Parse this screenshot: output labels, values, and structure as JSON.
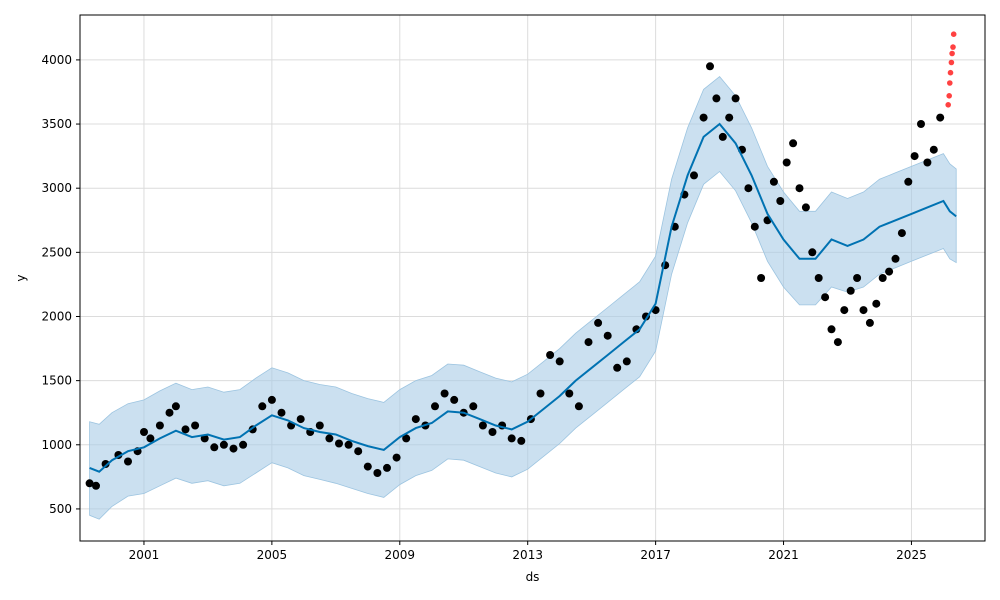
{
  "chart_data": {
    "type": "scatter",
    "xlabel": "ds",
    "ylabel": "y",
    "xlim": [
      1999.0,
      2027.3
    ],
    "ylim": [
      250,
      4350
    ],
    "x_ticks": [
      2001,
      2005,
      2009,
      2013,
      2017,
      2021,
      2025
    ],
    "x_tick_labels": [
      "2001",
      "2005",
      "2009",
      "2013",
      "2017",
      "2021",
      "2025"
    ],
    "y_ticks": [
      500,
      1000,
      1500,
      2000,
      2500,
      3000,
      3500,
      4000
    ],
    "y_tick_labels": [
      "500",
      "1000",
      "1500",
      "2000",
      "2500",
      "3000",
      "3500",
      "4000"
    ],
    "grid": true,
    "legend": "none",
    "colors": {
      "observed": "#000000",
      "forecast": "#0072B2",
      "interval": "#a8cce6",
      "anomaly": "#ff2020"
    },
    "series": [
      {
        "kind": "forecast",
        "x": [
          1999.3,
          1999.6,
          2000.0,
          2000.5,
          2001.0,
          2001.5,
          2002.0,
          2002.5,
          2003.0,
          2003.5,
          2004.0,
          2004.5,
          2005.0,
          2005.5,
          2006.0,
          2006.5,
          2007.0,
          2007.5,
          2008.0,
          2008.5,
          2009.0,
          2009.5,
          2010.0,
          2010.5,
          2011.0,
          2011.5,
          2012.0,
          2012.5,
          2013.0,
          2013.5,
          2014.0,
          2014.5,
          2015.0,
          2015.5,
          2016.0,
          2016.5,
          2017.0,
          2017.5,
          2018.0,
          2018.5,
          2019.0,
          2019.5,
          2020.0,
          2020.5,
          2021.0,
          2021.5,
          2022.0,
          2022.5,
          2023.0,
          2023.5,
          2024.0,
          2024.5,
          2025.0,
          2025.5,
          2026.0,
          2026.2,
          2026.4
        ],
        "y": [
          820,
          790,
          880,
          950,
          980,
          1050,
          1110,
          1060,
          1080,
          1040,
          1060,
          1150,
          1230,
          1190,
          1130,
          1100,
          1080,
          1030,
          990,
          960,
          1060,
          1130,
          1170,
          1260,
          1250,
          1200,
          1150,
          1120,
          1180,
          1280,
          1380,
          1500,
          1600,
          1700,
          1800,
          1900,
          2100,
          2700,
          3100,
          3400,
          3500,
          3350,
          3100,
          2800,
          2600,
          2450,
          2450,
          2600,
          2550,
          2600,
          2700,
          2750,
          2800,
          2850,
          2900,
          2820,
          2780
        ],
        "lower": [
          450,
          420,
          520,
          600,
          620,
          680,
          740,
          700,
          720,
          680,
          700,
          780,
          860,
          820,
          760,
          730,
          700,
          660,
          620,
          590,
          690,
          760,
          800,
          890,
          880,
          830,
          780,
          750,
          810,
          910,
          1010,
          1130,
          1230,
          1330,
          1430,
          1530,
          1730,
          2330,
          2730,
          3030,
          3130,
          2980,
          2730,
          2430,
          2230,
          2090,
          2090,
          2230,
          2190,
          2230,
          2330,
          2380,
          2430,
          2480,
          2530,
          2450,
          2420
        ],
        "upper": [
          1180,
          1160,
          1250,
          1320,
          1350,
          1420,
          1480,
          1430,
          1450,
          1410,
          1430,
          1520,
          1600,
          1560,
          1500,
          1470,
          1450,
          1400,
          1360,
          1330,
          1430,
          1500,
          1540,
          1630,
          1620,
          1570,
          1520,
          1490,
          1550,
          1650,
          1750,
          1870,
          1970,
          2070,
          2170,
          2270,
          2470,
          3070,
          3470,
          3770,
          3870,
          3720,
          3470,
          3170,
          2970,
          2820,
          2820,
          2970,
          2920,
          2970,
          3070,
          3120,
          3170,
          3220,
          3270,
          3190,
          3150
        ]
      },
      {
        "kind": "observed",
        "x": [
          1999.3,
          1999.5,
          1999.8,
          2000.2,
          2000.5,
          2000.8,
          2001.0,
          2001.2,
          2001.5,
          2001.8,
          2002.0,
          2002.3,
          2002.6,
          2002.9,
          2003.2,
          2003.5,
          2003.8,
          2004.1,
          2004.4,
          2004.7,
          2005.0,
          2005.3,
          2005.6,
          2005.9,
          2006.2,
          2006.5,
          2006.8,
          2007.1,
          2007.4,
          2007.7,
          2008.0,
          2008.3,
          2008.6,
          2008.9,
          2009.2,
          2009.5,
          2009.8,
          2010.1,
          2010.4,
          2010.7,
          2011.0,
          2011.3,
          2011.6,
          2011.9,
          2012.2,
          2012.5,
          2012.8,
          2013.1,
          2013.4,
          2013.7,
          2014.0,
          2014.3,
          2014.6,
          2014.9,
          2015.2,
          2015.5,
          2015.8,
          2016.1,
          2016.4,
          2016.7,
          2017.0,
          2017.3,
          2017.6,
          2017.9,
          2018.2,
          2018.5,
          2018.7,
          2018.9,
          2019.1,
          2019.3,
          2019.5,
          2019.7,
          2019.9,
          2020.1,
          2020.3,
          2020.5,
          2020.7,
          2020.9,
          2021.1,
          2021.3,
          2021.5,
          2021.7,
          2021.9,
          2022.1,
          2022.3,
          2022.5,
          2022.7,
          2022.9,
          2023.1,
          2023.3,
          2023.5,
          2023.7,
          2023.9,
          2024.1,
          2024.3,
          2024.5,
          2024.7,
          2024.9,
          2025.1,
          2025.3,
          2025.5,
          2025.7,
          2025.9
        ],
        "y": [
          700,
          680,
          850,
          920,
          870,
          950,
          1100,
          1050,
          1150,
          1250,
          1300,
          1120,
          1150,
          1050,
          980,
          1000,
          970,
          1000,
          1120,
          1300,
          1350,
          1250,
          1150,
          1200,
          1100,
          1150,
          1050,
          1010,
          1000,
          950,
          830,
          780,
          820,
          900,
          1050,
          1200,
          1150,
          1300,
          1400,
          1350,
          1250,
          1300,
          1150,
          1100,
          1150,
          1050,
          1030,
          1200,
          1400,
          1700,
          1650,
          1400,
          1300,
          1800,
          1950,
          1850,
          1600,
          1650,
          1900,
          2000,
          2050,
          2400,
          2700,
          2950,
          3100,
          3550,
          3950,
          3700,
          3400,
          3550,
          3700,
          3300,
          3000,
          2700,
          2300,
          2750,
          3050,
          2900,
          3200,
          3350,
          3000,
          2850,
          2500,
          2300,
          2150,
          1900,
          1800,
          2050,
          2200,
          2300,
          2050,
          1950,
          2100,
          2300,
          2350,
          2450,
          2650,
          3050,
          3250,
          3500,
          3200,
          3300,
          3550
        ]
      },
      {
        "kind": "anomaly",
        "x": [
          2026.15,
          2026.18,
          2026.2,
          2026.22,
          2026.25,
          2026.27,
          2026.3,
          2026.32
        ],
        "y": [
          3650,
          3720,
          3820,
          3900,
          3980,
          4050,
          4100,
          4200
        ]
      }
    ]
  }
}
